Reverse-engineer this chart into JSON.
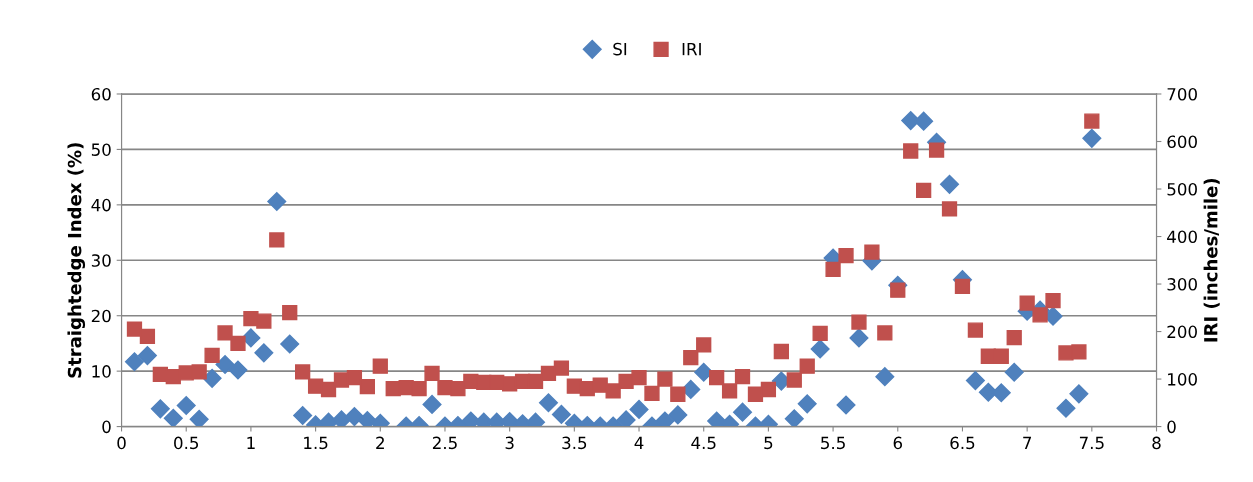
{
  "chart_data": {
    "type": "scatter",
    "xlabel": null,
    "ylabel": "Straightedge Index (%)",
    "y2label": "IRI (inches/mile)",
    "x": [
      0.1,
      0.2,
      0.3,
      0.4,
      0.5,
      0.6,
      0.7,
      0.8,
      0.9,
      1.0,
      1.1,
      1.2,
      1.3,
      1.4,
      1.5,
      1.6,
      1.7,
      1.8,
      1.9,
      2.0,
      2.1,
      2.2,
      2.3,
      2.4,
      2.5,
      2.6,
      2.7,
      2.8,
      2.9,
      3.0,
      3.1,
      3.2,
      3.3,
      3.4,
      3.5,
      3.6,
      3.7,
      3.8,
      3.9,
      4.0,
      4.1,
      4.2,
      4.3,
      4.4,
      4.5,
      4.6,
      4.7,
      4.8,
      4.9,
      5.0,
      5.1,
      5.2,
      5.3,
      5.4,
      5.5,
      5.6,
      5.7,
      5.8,
      5.9,
      6.0,
      6.1,
      6.2,
      6.3,
      6.4,
      6.5,
      6.6,
      6.7,
      6.8,
      6.9,
      7.0,
      7.1,
      7.2,
      7.3,
      7.4,
      7.5
    ],
    "series": [
      {
        "name": "SI",
        "color": "#4f81bd",
        "marker": "diamond",
        "values": [
          11.7,
          12.8,
          3.2,
          1.5,
          3.8,
          1.3,
          8.7,
          11.2,
          10.2,
          16,
          13.3,
          40.6,
          14.9,
          2,
          0.3,
          0.8,
          1.2,
          1.8,
          1.1,
          0.6,
          null,
          0.1,
          0.2,
          4,
          0.1,
          0.2,
          1,
          0.8,
          0.8,
          0.9,
          0.5,
          0.8,
          4.3,
          2.2,
          0.6,
          0.2,
          0.1,
          0.1,
          1.2,
          3.1,
          0.1,
          1,
          2.1,
          6.7,
          9.8,
          1,
          0.4,
          2.6,
          0.1,
          0.4,
          8.2,
          1.4,
          4.1,
          14,
          30.4,
          3.9,
          16,
          29.9,
          9,
          25.5,
          55.2,
          55.1,
          51.3,
          43.7,
          26.5,
          8.3,
          6.2,
          6.1,
          9.8,
          20.8,
          21,
          19.9,
          3.3,
          5.9,
          52
        ]
      },
      {
        "name": "IRI",
        "color": "#c0504d",
        "marker": "square",
        "axis": "y2",
        "values": [
          205,
          190,
          110,
          105,
          113,
          115,
          150,
          197,
          175,
          227,
          222,
          393,
          240,
          115,
          85,
          78,
          98,
          103,
          84,
          127,
          80,
          82,
          80,
          112,
          82,
          80,
          95,
          93,
          93,
          90,
          95,
          95,
          112,
          123,
          85,
          80,
          87,
          75,
          95,
          103,
          70,
          100,
          68,
          145,
          172,
          103,
          75,
          105,
          68,
          78,
          158,
          98,
          127,
          196,
          331,
          360,
          220,
          367,
          197,
          287,
          580,
          497,
          582,
          458,
          295,
          203,
          148,
          148,
          187,
          260,
          235,
          265,
          155,
          157,
          643
        ]
      }
    ],
    "xlim": [
      0,
      8
    ],
    "xticks": [
      0,
      0.5,
      1,
      1.5,
      2,
      2.5,
      3,
      3.5,
      4,
      4.5,
      5,
      5.5,
      6,
      6.5,
      7,
      7.5,
      8
    ],
    "ylim": [
      0,
      60
    ],
    "yticks": [
      0,
      10,
      20,
      30,
      40,
      50,
      60
    ],
    "y2lim": [
      0,
      700
    ],
    "y2ticks": [
      0,
      100,
      200,
      300,
      400,
      500,
      600,
      700
    ],
    "grid": "y",
    "legend": "top"
  }
}
